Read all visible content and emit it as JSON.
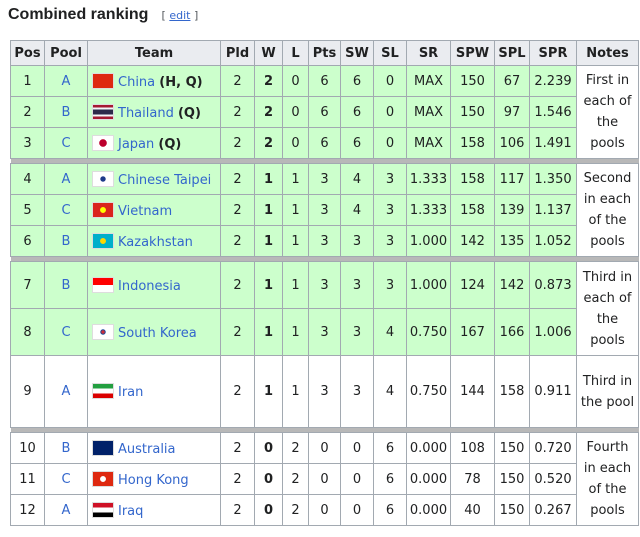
{
  "heading": {
    "title": "Combined ranking",
    "edit": "edit"
  },
  "table": {
    "headers": [
      "Pos",
      "Pool",
      "Team",
      "Pld",
      "W",
      "L",
      "Pts",
      "SW",
      "SL",
      "SR",
      "SPW",
      "SPL",
      "SPR",
      "Notes"
    ],
    "rows": [
      {
        "pos": "1",
        "pool": "A",
        "team": "China",
        "tag": "(H, Q)",
        "pld": "2",
        "w": "2",
        "l": "0",
        "pts": "6",
        "sw": "6",
        "sl": "0",
        "sr": "MAX",
        "spw": "150",
        "spl": "67",
        "spr": "2.239",
        "note": "First in each of the pools"
      },
      {
        "pos": "2",
        "pool": "B",
        "team": "Thailand",
        "tag": "(Q)",
        "pld": "2",
        "w": "2",
        "l": "0",
        "pts": "6",
        "sw": "6",
        "sl": "0",
        "sr": "MAX",
        "spw": "150",
        "spl": "97",
        "spr": "1.546"
      },
      {
        "pos": "3",
        "pool": "C",
        "team": "Japan",
        "tag": "(Q)",
        "pld": "2",
        "w": "2",
        "l": "0",
        "pts": "6",
        "sw": "6",
        "sl": "0",
        "sr": "MAX",
        "spw": "158",
        "spl": "106",
        "spr": "1.491"
      },
      {
        "pos": "4",
        "pool": "A",
        "team": "Chinese Taipei",
        "pld": "2",
        "w": "1",
        "l": "1",
        "pts": "3",
        "sw": "4",
        "sl": "3",
        "sr": "1.333",
        "spw": "158",
        "spl": "117",
        "spr": "1.350",
        "note": "Second in each of the pools"
      },
      {
        "pos": "5",
        "pool": "C",
        "team": "Vietnam",
        "pld": "2",
        "w": "1",
        "l": "1",
        "pts": "3",
        "sw": "4",
        "sl": "3",
        "sr": "1.333",
        "spw": "158",
        "spl": "139",
        "spr": "1.137"
      },
      {
        "pos": "6",
        "pool": "B",
        "team": "Kazakhstan",
        "pld": "2",
        "w": "1",
        "l": "1",
        "pts": "3",
        "sw": "3",
        "sl": "3",
        "sr": "1.000",
        "spw": "142",
        "spl": "135",
        "spr": "1.052"
      },
      {
        "pos": "7",
        "pool": "B",
        "team": "Indonesia",
        "pld": "2",
        "w": "1",
        "l": "1",
        "pts": "3",
        "sw": "3",
        "sl": "3",
        "sr": "1.000",
        "spw": "124",
        "spl": "142",
        "spr": "0.873",
        "note": "Third in each of the pools"
      },
      {
        "pos": "8",
        "pool": "C",
        "team": "South Korea",
        "pld": "2",
        "w": "1",
        "l": "1",
        "pts": "3",
        "sw": "3",
        "sl": "4",
        "sr": "0.750",
        "spw": "167",
        "spl": "166",
        "spr": "1.006"
      },
      {
        "pos": "9",
        "pool": "A",
        "team": "Iran",
        "pld": "2",
        "w": "1",
        "l": "1",
        "pts": "3",
        "sw": "3",
        "sl": "4",
        "sr": "0.750",
        "spw": "144",
        "spl": "158",
        "spr": "0.911",
        "note": "Third in the pool"
      },
      {
        "pos": "10",
        "pool": "B",
        "team": "Australia",
        "pld": "2",
        "w": "0",
        "l": "2",
        "pts": "0",
        "sw": "0",
        "sl": "6",
        "sr": "0.000",
        "spw": "108",
        "spl": "150",
        "spr": "0.720",
        "note": "Fourth in each of the pools"
      },
      {
        "pos": "11",
        "pool": "C",
        "team": "Hong Kong",
        "pld": "2",
        "w": "0",
        "l": "2",
        "pts": "0",
        "sw": "0",
        "sl": "6",
        "sr": "0.000",
        "spw": "78",
        "spl": "150",
        "spr": "0.520"
      },
      {
        "pos": "12",
        "pool": "A",
        "team": "Iraq",
        "pld": "2",
        "w": "0",
        "l": "2",
        "pts": "0",
        "sw": "0",
        "sl": "6",
        "sr": "0.000",
        "spw": "40",
        "spl": "150",
        "spr": "0.267"
      }
    ]
  }
}
